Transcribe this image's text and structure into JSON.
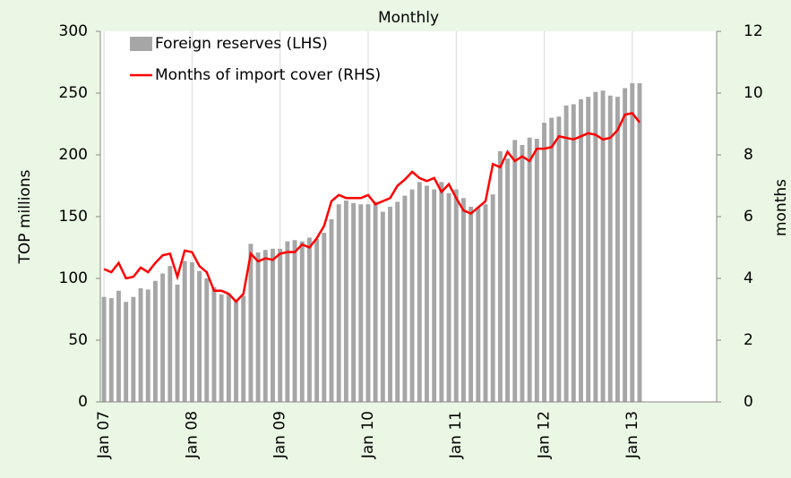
{
  "chart_data": {
    "type": "bar_line",
    "title": "Monthly",
    "y_label": "TOP millions",
    "y2_label": "months",
    "categories": [
      "Jan 07",
      null,
      null,
      null,
      null,
      null,
      null,
      null,
      null,
      null,
      null,
      null,
      "Jan 08",
      null,
      null,
      null,
      null,
      null,
      null,
      null,
      null,
      null,
      null,
      null,
      "Jan 09",
      null,
      null,
      null,
      null,
      null,
      null,
      null,
      null,
      null,
      null,
      null,
      "Jan 10",
      null,
      null,
      null,
      null,
      null,
      null,
      null,
      null,
      null,
      null,
      null,
      "Jan 11",
      null,
      null,
      null,
      null,
      null,
      null,
      null,
      null,
      null,
      null,
      null,
      "Jan 12",
      null,
      null,
      null,
      null,
      null,
      null,
      null,
      null,
      null,
      null,
      null,
      "Jan 13",
      null,
      null,
      null,
      null,
      null,
      null,
      null,
      null,
      null,
      null,
      null
    ],
    "series": [
      {
        "name": "Foreign reserves (LHS)",
        "type": "bar",
        "color": "#a6a6a6",
        "values": [
          85,
          84,
          90,
          81,
          85,
          92,
          91,
          98,
          104,
          110,
          95,
          114,
          113,
          106,
          100,
          93,
          87,
          88,
          82,
          86,
          128,
          121,
          123,
          124,
          124,
          130,
          131,
          130,
          133,
          132,
          137,
          148,
          160,
          163,
          161,
          160,
          160,
          162,
          154,
          158,
          162,
          167,
          172,
          178,
          175,
          172,
          178,
          169,
          172,
          165,
          158,
          157,
          160,
          168,
          203,
          197,
          212,
          208,
          214,
          213,
          226,
          230,
          231,
          240,
          241,
          245,
          247,
          251,
          252,
          248,
          247,
          254,
          258,
          258,
          null,
          null,
          null,
          null,
          null,
          null,
          null,
          null,
          null,
          null
        ]
      },
      {
        "name": "Months of import cover (RHS)",
        "type": "line",
        "axis": "y2",
        "color": "#ff0000",
        "values": [
          4.3,
          4.2,
          4.5,
          4.0,
          4.05,
          4.35,
          4.2,
          4.5,
          4.75,
          4.8,
          4.05,
          4.9,
          4.85,
          4.4,
          4.2,
          3.6,
          3.6,
          3.5,
          3.25,
          3.5,
          4.8,
          4.55,
          4.65,
          4.6,
          4.8,
          4.85,
          4.85,
          5.1,
          5.0,
          5.3,
          5.7,
          6.5,
          6.7,
          6.6,
          6.6,
          6.6,
          6.7,
          6.4,
          6.5,
          6.6,
          7.0,
          7.2,
          7.45,
          7.25,
          7.15,
          7.25,
          6.8,
          7.05,
          6.6,
          6.2,
          6.1,
          6.3,
          6.5,
          7.7,
          7.6,
          8.1,
          7.8,
          7.95,
          7.8,
          8.2,
          8.2,
          8.25,
          8.6,
          8.55,
          8.5,
          8.6,
          8.7,
          8.65,
          8.5,
          8.55,
          8.8,
          9.3,
          9.35,
          9.05,
          null,
          null,
          null,
          null,
          null,
          null,
          null,
          null,
          null,
          null
        ]
      }
    ],
    "ylim": [
      0,
      300
    ],
    "yticks": [
      0,
      50,
      100,
      150,
      200,
      250,
      300
    ],
    "y2lim": [
      0,
      12
    ],
    "y2ticks": [
      0,
      2,
      4,
      6,
      8,
      10,
      12
    ]
  }
}
